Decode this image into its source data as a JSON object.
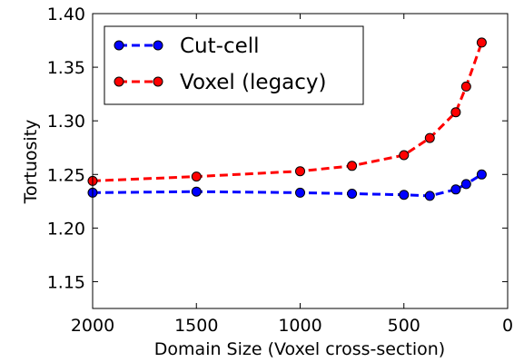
{
  "chart_data": {
    "type": "line",
    "title": "",
    "xlabel": "Domain Size (Voxel cross-section)",
    "ylabel": "Tortuosity",
    "x_reversed": true,
    "xlim": [
      0,
      2000
    ],
    "ylim": [
      1.125,
      1.4
    ],
    "xticks": [
      2000,
      1500,
      1000,
      500,
      0
    ],
    "yticks": [
      1.15,
      1.2,
      1.25,
      1.3,
      1.35,
      1.4
    ],
    "ytick_labels": [
      "1.15",
      "1.20",
      "1.25",
      "1.30",
      "1.35",
      "1.40"
    ],
    "grid": false,
    "legend_position": "top-left",
    "series": [
      {
        "name": "Cut-cell",
        "color": "#0000ff",
        "linestyle": "dashed",
        "marker": "circle",
        "x": [
          2000,
          1500,
          1000,
          750,
          500,
          375,
          250,
          200,
          125
        ],
        "y": [
          1.233,
          1.234,
          1.233,
          1.232,
          1.231,
          1.23,
          1.236,
          1.241,
          1.25
        ]
      },
      {
        "name": "Voxel (legacy)",
        "color": "#ff0000",
        "linestyle": "dashed",
        "marker": "circle",
        "x": [
          2000,
          1500,
          1000,
          750,
          500,
          375,
          250,
          200,
          125
        ],
        "y": [
          1.244,
          1.248,
          1.253,
          1.258,
          1.268,
          1.284,
          1.308,
          1.332,
          1.373
        ]
      }
    ]
  }
}
